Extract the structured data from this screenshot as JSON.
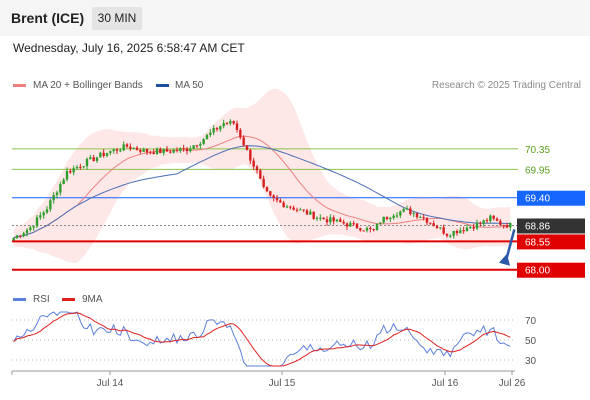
{
  "header": {
    "symbol": "Brent (ICE)",
    "timeframe": "30 MIN",
    "datetime": "Wednesday, July 16, 2025 6:58:47 AM CET"
  },
  "legend": {
    "items": [
      {
        "label": "MA 20 + Bollinger Bands",
        "color": "#f08080"
      },
      {
        "label": "MA 50",
        "color": "#1f4e9e"
      }
    ],
    "rsi_items": [
      {
        "label": "RSI",
        "color": "#5b7fdb"
      },
      {
        "label": "9MA",
        "color": "#e02020"
      }
    ],
    "credit": "Research © 2025 Trading Central"
  },
  "colors": {
    "bull": "#2e9e2e",
    "bear": "#d62020",
    "resistance": "#8bc34a",
    "pivot": "#1565ff",
    "support": "#e00000",
    "last": "#333333",
    "bollinger_fill": "#fde3e3",
    "ma20": "#f08080",
    "ma50": "#4a6fb5",
    "arrow": "#2a5aa8"
  },
  "chart_data": [
    {
      "type": "candlestick",
      "title": "Brent (ICE) 30 MIN",
      "x_ticks": [
        "Jul 14",
        "Jul 15",
        "Jul 16",
        "Jul 26"
      ],
      "ylim": [
        67.8,
        71.3
      ],
      "levels": [
        {
          "label": "70.35",
          "value": 70.35,
          "kind": "resistance"
        },
        {
          "label": "69.95",
          "value": 69.95,
          "kind": "resistance"
        },
        {
          "label": "69.40",
          "value": 69.4,
          "kind": "pivot"
        },
        {
          "label": "68.86",
          "value": 68.86,
          "kind": "last"
        },
        {
          "label": "68.55",
          "value": 68.55,
          "kind": "support"
        },
        {
          "label": "68.00",
          "value": 68.0,
          "kind": "support"
        }
      ],
      "arrow": {
        "from": 68.86,
        "to": 68.0
      }
    },
    {
      "type": "line",
      "title": "RSI",
      "ylim": [
        20,
        80
      ],
      "y_ticks": [
        30,
        50,
        70
      ],
      "series": [
        {
          "name": "RSI",
          "color": "#5b7fdb"
        },
        {
          "name": "9MA",
          "color": "#e02020"
        }
      ]
    }
  ]
}
